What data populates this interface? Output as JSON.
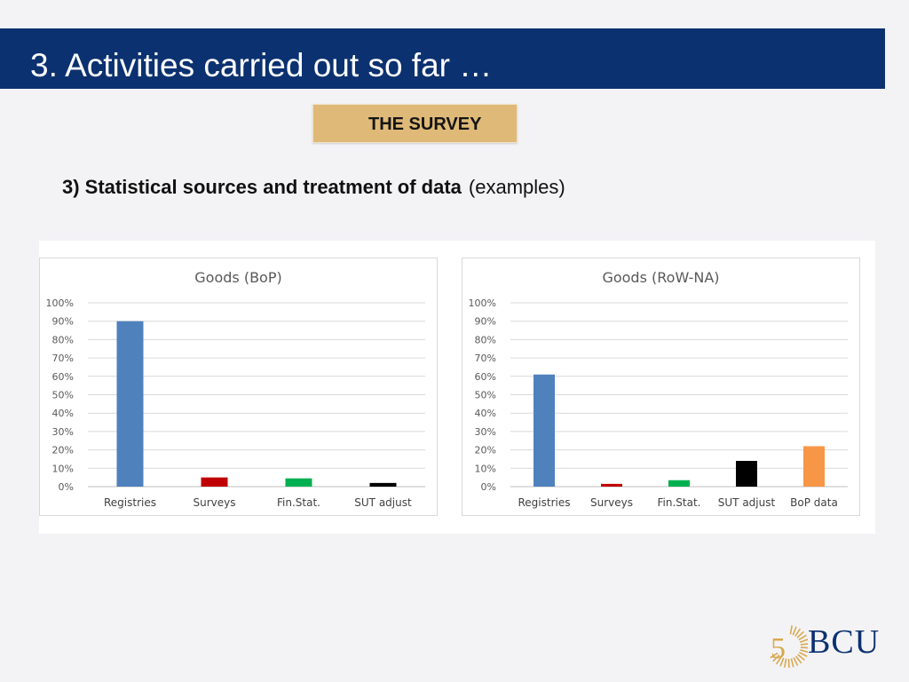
{
  "slide": {
    "title": "3. Activities carried out so far …",
    "badge": "THE SURVEY",
    "subtitle_bold": "3) Statistical sources and treatment of data",
    "subtitle_light": "(examples)"
  },
  "logo": {
    "number": "5",
    "text": "BCU"
  },
  "colors": {
    "header": "#0b3170",
    "badge": "#dfb978",
    "gold": "#d9a84e",
    "registries": "#4f81bd",
    "surveys": "#c00000",
    "finstat": "#00b050",
    "sut": "#000000",
    "bop": "#f79646"
  },
  "chart_data": [
    {
      "type": "bar",
      "title": "Goods (BoP)",
      "categories": [
        "Registries",
        "Surveys",
        "Fin.Stat.",
        "SUT adjust"
      ],
      "values": [
        90,
        5,
        4.5,
        2
      ],
      "colors": [
        "#4f81bd",
        "#c00000",
        "#00b050",
        "#000000"
      ],
      "yticks": [
        "0%",
        "10%",
        "20%",
        "30%",
        "40%",
        "50%",
        "60%",
        "70%",
        "80%",
        "90%",
        "100%"
      ],
      "ylim": [
        0,
        100
      ],
      "grid": true,
      "legend": "none"
    },
    {
      "type": "bar",
      "title": "Goods (RoW-NA)",
      "categories": [
        "Registries",
        "Surveys",
        "Fin.Stat.",
        "SUT adjust",
        "BoP data"
      ],
      "values": [
        61,
        1.5,
        3.5,
        14,
        22
      ],
      "colors": [
        "#4f81bd",
        "#c00000",
        "#00b050",
        "#000000",
        "#f79646"
      ],
      "yticks": [
        "0%",
        "10%",
        "20%",
        "30%",
        "40%",
        "50%",
        "60%",
        "70%",
        "80%",
        "90%",
        "100%"
      ],
      "ylim": [
        0,
        100
      ],
      "grid": true,
      "legend": "none"
    }
  ]
}
